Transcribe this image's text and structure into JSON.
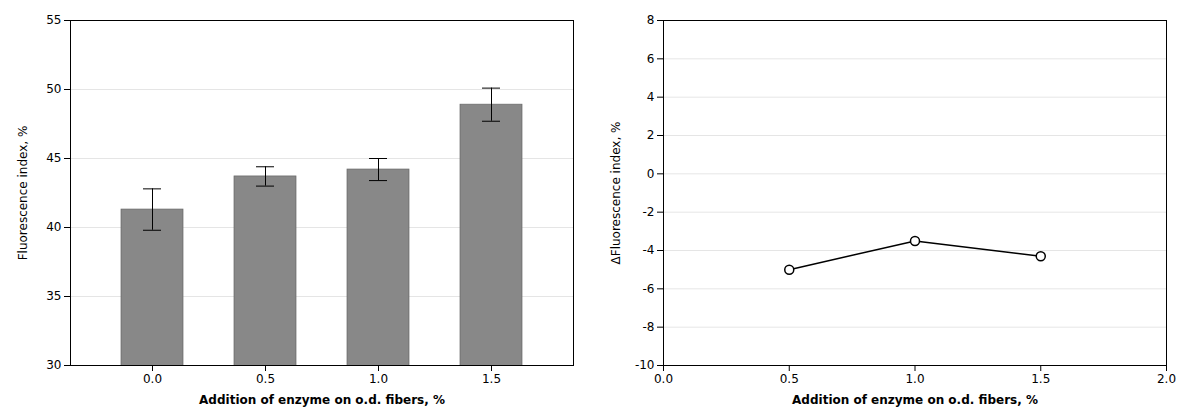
{
  "chart_data": [
    {
      "type": "bar",
      "categories": [
        "0.0",
        "0.5",
        "1.0",
        "1.5"
      ],
      "values": [
        41.3,
        43.7,
        44.2,
        48.9
      ],
      "errors": [
        1.5,
        0.7,
        0.8,
        1.2
      ],
      "color": "#888888",
      "xlabel": "Addition of enzyme on o.d. fibers, %",
      "ylabel": "Fluorescence index, %",
      "ylim": [
        30,
        55
      ],
      "yticks": [
        30,
        35,
        40,
        45,
        50,
        55
      ],
      "grid": true
    },
    {
      "type": "line",
      "x": [
        0.5,
        1.0,
        1.5
      ],
      "values": [
        -5.0,
        -3.5,
        -4.3
      ],
      "color": "#000000",
      "marker": "circle",
      "xlabel": "Addition of enzyme on o.d. fibers, %",
      "ylabel": "ΔFluorescence index, %",
      "xlim": [
        0.0,
        2.0
      ],
      "xticks": [
        {
          "value": 0.0,
          "label": "0.0"
        },
        0.5,
        {
          "value": 1.0,
          "label": "1.0"
        },
        1.5,
        {
          "value": 2.0,
          "label": "2.0"
        }
      ],
      "ylim": [
        -10,
        8
      ],
      "yticks": [
        -10,
        -8,
        -6,
        -4,
        -2,
        0,
        2,
        4,
        6,
        8
      ],
      "grid": true
    }
  ]
}
